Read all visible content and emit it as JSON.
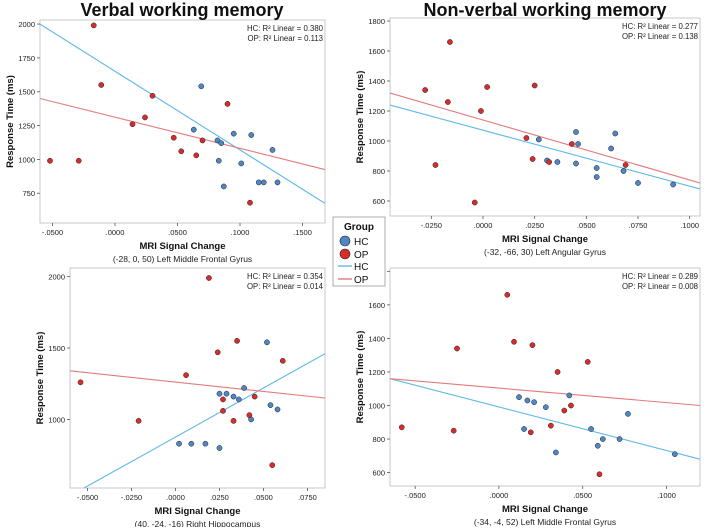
{
  "legend": {
    "title": "Group",
    "groups": [
      {
        "label": "HC",
        "point_color": "#4f86c6",
        "line_color": "#5fb8e8"
      },
      {
        "label": "OP",
        "point_color": "#d92b2b",
        "line_color": "#e27a7a"
      }
    ],
    "lines": [
      {
        "label": "HC",
        "color": "#5fb8e8"
      },
      {
        "label": "OP",
        "color": "#e27a7a"
      }
    ]
  },
  "chart_data": [
    {
      "type": "scatter",
      "title": "Verbal working memory",
      "xlabel": "MRI Signal Change",
      "ylabel": "Response Time (ms)",
      "caption": "(-28, 0, 50) Left Middle Frontal Gyrus",
      "xlim": [
        -0.06,
        0.168
      ],
      "ylim": [
        530,
        2030
      ],
      "xticks": [
        -0.05,
        0,
        0.05,
        0.1,
        0.15
      ],
      "xtick_labels": [
        "-.0500",
        ".0000",
        ".0500",
        ".1000",
        ".1500"
      ],
      "yticks": [
        750,
        1000,
        1250,
        1500,
        1750,
        2000
      ],
      "ytick_labels": [
        "750",
        "1000",
        "1250",
        "1500",
        "1750",
        "2000"
      ],
      "stats": [
        {
          "group": "HC",
          "text": "HC: R² Linear = 0.380"
        },
        {
          "group": "OP",
          "text": "OP: R² Linear = 0.113"
        }
      ],
      "fits": [
        {
          "group": "HC",
          "x": [
            -0.06,
            0.168
          ],
          "y": [
            2000,
            675
          ]
        },
        {
          "group": "OP",
          "x": [
            -0.06,
            0.168
          ],
          "y": [
            1450,
            925
          ]
        }
      ],
      "series": [
        {
          "name": "HC",
          "points": [
            [
              0.069,
              1540
            ],
            [
              0.063,
              1220
            ],
            [
              0.082,
              1140
            ],
            [
              0.085,
              1120
            ],
            [
              0.095,
              1190
            ],
            [
              0.109,
              1180
            ],
            [
              0.126,
              1070
            ],
            [
              0.083,
              990
            ],
            [
              0.101,
              970
            ],
            [
              0.087,
              800
            ],
            [
              0.115,
              830
            ],
            [
              0.119,
              830
            ],
            [
              0.13,
              830
            ]
          ]
        },
        {
          "name": "OP",
          "points": [
            [
              -0.017,
              1990
            ],
            [
              -0.011,
              1550
            ],
            [
              0.03,
              1470
            ],
            [
              0.024,
              1310
            ],
            [
              0.014,
              1260
            ],
            [
              0.047,
              1160
            ],
            [
              0.07,
              1140
            ],
            [
              0.09,
              1410
            ],
            [
              0.053,
              1060
            ],
            [
              0.065,
              1030
            ],
            [
              -0.052,
              990
            ],
            [
              -0.029,
              990
            ],
            [
              0.108,
              680
            ]
          ]
        }
      ]
    },
    {
      "type": "scatter",
      "title": "Non-verbal working memory",
      "xlabel": "MRI Signal Change",
      "ylabel": "Response Time (ms)",
      "caption": "(-32, -66, 30) Left Angular Gyrus",
      "xlim": [
        -0.045,
        0.105
      ],
      "ylim": [
        500,
        1820
      ],
      "xticks": [
        -0.025,
        0,
        0.025,
        0.05,
        0.075,
        0.1
      ],
      "xtick_labels": [
        "-.0250",
        ".0000",
        ".0250",
        ".0500",
        ".0750",
        ".1000"
      ],
      "yticks": [
        600,
        800,
        1000,
        1200,
        1400,
        1600,
        1800
      ],
      "ytick_labels": [
        "600",
        "800",
        "1000",
        "1200",
        "1400",
        "1600",
        "1800"
      ],
      "stats": [
        {
          "group": "HC",
          "text": "HC: R² Linear = 0.277"
        },
        {
          "group": "OP",
          "text": "OP: R² Linear = 0.138"
        }
      ],
      "fits": [
        {
          "group": "HC",
          "x": [
            -0.045,
            0.105
          ],
          "y": [
            1240,
            680
          ]
        },
        {
          "group": "OP",
          "x": [
            -0.045,
            0.105
          ],
          "y": [
            1320,
            720
          ]
        }
      ],
      "series": [
        {
          "name": "HC",
          "points": [
            [
              0.045,
              1060
            ],
            [
              0.064,
              1050
            ],
            [
              0.027,
              1010
            ],
            [
              0.046,
              980
            ],
            [
              0.062,
              950
            ],
            [
              0.031,
              870
            ],
            [
              0.036,
              860
            ],
            [
              0.045,
              850
            ],
            [
              0.055,
              820
            ],
            [
              0.068,
              800
            ],
            [
              0.055,
              760
            ],
            [
              0.075,
              720
            ],
            [
              0.092,
              710
            ]
          ]
        },
        {
          "name": "OP",
          "points": [
            [
              -0.016,
              1660
            ],
            [
              -0.028,
              1340
            ],
            [
              0.002,
              1360
            ],
            [
              -0.017,
              1260
            ],
            [
              0.025,
              1370
            ],
            [
              -0.001,
              1200
            ],
            [
              0.021,
              1020
            ],
            [
              0.043,
              980
            ],
            [
              0.024,
              880
            ],
            [
              0.032,
              860
            ],
            [
              0.069,
              840
            ],
            [
              -0.023,
              840
            ],
            [
              -0.004,
              590
            ]
          ]
        }
      ]
    },
    {
      "type": "scatter",
      "title": "",
      "xlabel": "MRI Signal Change",
      "ylabel": "Response Time (ms)",
      "caption": "(40, -24, -16) Right Hippocampus",
      "xlim": [
        -0.06,
        0.085
      ],
      "ylim": [
        520,
        2060
      ],
      "xticks": [
        -0.05,
        -0.025,
        0,
        0.025,
        0.05,
        0.075
      ],
      "xtick_labels": [
        "-.0500",
        "-.0250",
        ".0000",
        ".0250",
        ".0500",
        ".0750"
      ],
      "yticks": [
        1000,
        1500,
        2000
      ],
      "ytick_labels": [
        "1000",
        "1500",
        "2000"
      ],
      "stats": [
        {
          "group": "HC",
          "text": "HC: R² Linear = 0.354"
        },
        {
          "group": "OP",
          "text": "OP: R² Linear = 0.014"
        }
      ],
      "fits": [
        {
          "group": "HC",
          "x": [
            -0.052,
            0.085
          ],
          "y": [
            520,
            1460
          ]
        },
        {
          "group": "OP",
          "x": [
            -0.06,
            0.085
          ],
          "y": [
            1340,
            1150
          ]
        }
      ],
      "series": [
        {
          "name": "HC",
          "points": [
            [
              0.052,
              1540
            ],
            [
              0.039,
              1220
            ],
            [
              0.029,
              1180
            ],
            [
              0.033,
              1160
            ],
            [
              0.025,
              1180
            ],
            [
              0.036,
              1140
            ],
            [
              0.054,
              1100
            ],
            [
              0.058,
              1070
            ],
            [
              0.043,
              1000
            ],
            [
              0.002,
              830
            ],
            [
              0.009,
              830
            ],
            [
              0.017,
              830
            ],
            [
              0.025,
              800
            ]
          ]
        },
        {
          "name": "OP",
          "points": [
            [
              0.019,
              1990
            ],
            [
              0.035,
              1550
            ],
            [
              0.061,
              1410
            ],
            [
              0.024,
              1470
            ],
            [
              0.006,
              1310
            ],
            [
              -0.054,
              1260
            ],
            [
              0.027,
              1140
            ],
            [
              0.045,
              1160
            ],
            [
              0.027,
              1060
            ],
            [
              0.042,
              1030
            ],
            [
              0.033,
              990
            ],
            [
              -0.021,
              990
            ],
            [
              0.055,
              680
            ]
          ]
        }
      ]
    },
    {
      "type": "scatter",
      "title": "",
      "xlabel": "MRI Signal Change",
      "ylabel": "Response Time (ms)",
      "caption": "(-34, -4, 52) Left Middle Frontal Gyrus",
      "xlim": [
        -0.065,
        0.12
      ],
      "ylim": [
        520,
        1820
      ],
      "xticks": [
        -0.05,
        0,
        0.05,
        0.1
      ],
      "xtick_labels": [
        "-.0500",
        ".0000",
        ".0500",
        ".1000"
      ],
      "yticks": [
        600,
        800,
        1000,
        1200,
        1400,
        1600,
        1800
      ],
      "ytick_labels": [
        "600",
        "800",
        "1000",
        "1200",
        "1400",
        "1600",
        "1800"
      ],
      "stats": [
        {
          "group": "HC",
          "text": "HC: R² Linear = 0.289"
        },
        {
          "group": "OP",
          "text": "OP: R² Linear = 0.008"
        }
      ],
      "fits": [
        {
          "group": "HC",
          "x": [
            -0.065,
            0.12
          ],
          "y": [
            1160,
            680
          ]
        },
        {
          "group": "OP",
          "x": [
            -0.065,
            0.12
          ],
          "y": [
            1160,
            1000
          ]
        }
      ],
      "series": [
        {
          "name": "HC",
          "points": [
            [
              0.042,
              1060
            ],
            [
              0.012,
              1050
            ],
            [
              0.017,
              1030
            ],
            [
              0.021,
              1020
            ],
            [
              0.028,
              990
            ],
            [
              0.015,
              860
            ],
            [
              0.034,
              720
            ],
            [
              0.055,
              860
            ],
            [
              0.077,
              950
            ],
            [
              0.059,
              760
            ],
            [
              0.072,
              800
            ],
            [
              0.062,
              800
            ],
            [
              0.105,
              710
            ]
          ]
        },
        {
          "name": "OP",
          "points": [
            [
              0.005,
              1660
            ],
            [
              -0.025,
              1340
            ],
            [
              0.009,
              1380
            ],
            [
              0.02,
              1360
            ],
            [
              0.035,
              1200
            ],
            [
              0.053,
              1260
            ],
            [
              0.039,
              970
            ],
            [
              0.031,
              880
            ],
            [
              0.019,
              840
            ],
            [
              -0.058,
              870
            ],
            [
              -0.027,
              850
            ],
            [
              0.043,
              1000
            ],
            [
              0.06,
              590
            ]
          ]
        }
      ]
    }
  ]
}
